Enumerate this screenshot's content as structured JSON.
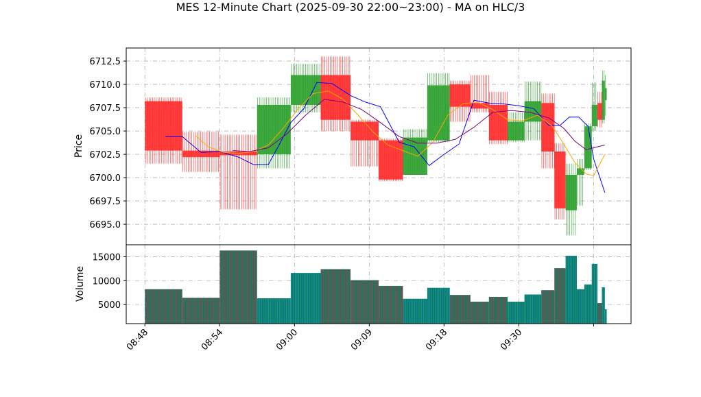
{
  "chart_data": {
    "type": "candlestick",
    "title": "MES 12-Minute Chart (2025-09-30 22:00~23:00) - MA on HLC/3",
    "price_panel": {
      "ylabel": "Price",
      "ylim": [
        6692.8,
        6713.9
      ],
      "yticks": [
        6695.0,
        6697.5,
        6700.0,
        6702.5,
        6705.0,
        6707.5,
        6710.0,
        6712.5
      ],
      "ytick_labels": [
        "6695.0",
        "6697.5",
        "6700.0",
        "6702.5",
        "6705.0",
        "6707.5",
        "6710.0",
        "6712.5"
      ],
      "grid": true,
      "candles": [
        {
          "x": 0.0,
          "w": 1.0,
          "open": 6708.2,
          "high": 6708.6,
          "low": 6701.5,
          "close": 6702.9
        },
        {
          "x": 1.0,
          "w": 1.0,
          "open": 6702.9,
          "high": 6704.9,
          "low": 6700.6,
          "close": 6702.2
        },
        {
          "x": 2.0,
          "w": 1.0,
          "open": 6702.8,
          "high": 6704.6,
          "low": 6696.6,
          "close": 6702.4
        },
        {
          "x": 3.0,
          "w": 0.9,
          "open": 6702.5,
          "high": 6708.6,
          "low": 6701.0,
          "close": 6707.8
        },
        {
          "x": 3.9,
          "w": 0.8,
          "open": 6707.8,
          "high": 6712.2,
          "low": 6707.0,
          "close": 6711.0
        },
        {
          "x": 4.7,
          "w": 0.8,
          "open": 6711.0,
          "high": 6713.0,
          "low": 6705.0,
          "close": 6706.2
        },
        {
          "x": 5.5,
          "w": 0.75,
          "open": 6706.0,
          "high": 6706.2,
          "low": 6701.2,
          "close": 6704.0
        },
        {
          "x": 6.25,
          "w": 0.65,
          "open": 6704.0,
          "high": 6704.2,
          "low": 6699.6,
          "close": 6699.8
        },
        {
          "x": 6.9,
          "w": 0.65,
          "open": 6700.3,
          "high": 6705.2,
          "low": 6700.3,
          "close": 6704.3
        },
        {
          "x": 7.55,
          "w": 0.6,
          "open": 6704.0,
          "high": 6711.2,
          "low": 6703.8,
          "close": 6709.9
        },
        {
          "x": 8.15,
          "w": 0.55,
          "open": 6710.0,
          "high": 6710.4,
          "low": 6706.0,
          "close": 6707.6
        },
        {
          "x": 8.7,
          "w": 0.5,
          "open": 6708.0,
          "high": 6711.0,
          "low": 6707.0,
          "close": 6707.4
        },
        {
          "x": 9.2,
          "w": 0.5,
          "open": 6707.8,
          "high": 6709.2,
          "low": 6703.6,
          "close": 6704.0
        },
        {
          "x": 9.7,
          "w": 0.45,
          "open": 6704.0,
          "high": 6707.0,
          "low": 6703.8,
          "close": 6706.0
        },
        {
          "x": 10.15,
          "w": 0.45,
          "open": 6706.0,
          "high": 6710.3,
          "low": 6704.0,
          "close": 6708.2
        },
        {
          "x": 10.6,
          "w": 0.35,
          "open": 6708.0,
          "high": 6709.0,
          "low": 6701.0,
          "close": 6702.8
        },
        {
          "x": 10.95,
          "w": 0.3,
          "open": 6702.8,
          "high": 6703.7,
          "low": 6695.5,
          "close": 6696.7
        },
        {
          "x": 11.25,
          "w": 0.3,
          "open": 6696.5,
          "high": 6701.5,
          "low": 6693.8,
          "close": 6700.3
        },
        {
          "x": 11.55,
          "w": 0.2,
          "open": 6700.3,
          "high": 6702.0,
          "low": 6697.0,
          "close": 6701.0
        },
        {
          "x": 11.75,
          "w": 0.2,
          "open": 6701.0,
          "high": 6705.8,
          "low": 6700.8,
          "close": 6705.5
        },
        {
          "x": 11.95,
          "w": 0.15,
          "open": 6705.5,
          "high": 6710.2,
          "low": 6705.0,
          "close": 6707.8
        },
        {
          "x": 12.1,
          "w": 0.12,
          "open": 6708.0,
          "high": 6709.2,
          "low": 6705.4,
          "close": 6706.2
        },
        {
          "x": 12.22,
          "w": 0.08,
          "open": 6706.2,
          "high": 6711.5,
          "low": 6705.8,
          "close": 6710.4
        },
        {
          "x": 12.3,
          "w": 0.05,
          "open": 6708.3,
          "high": 6711.0,
          "low": 6706.6,
          "close": 6709.6
        }
      ],
      "ma_lines": [
        {
          "color": "#0000ff",
          "x": [
            0.55,
            1.0,
            1.5,
            2.0,
            2.5,
            2.9,
            3.3,
            3.6,
            3.9,
            4.25,
            4.6,
            5.0,
            5.5,
            5.9,
            6.3,
            6.8,
            7.2,
            7.6,
            8.0,
            8.4,
            8.8,
            9.2,
            9.6,
            10.0,
            10.4,
            10.8,
            11.1,
            11.35,
            11.6,
            11.85,
            12.0,
            12.3
          ],
          "y": [
            6704.4,
            6704.4,
            6702.7,
            6702.8,
            6702.2,
            6701.4,
            6701.4,
            6703.6,
            6705.9,
            6707.4,
            6710.2,
            6710.1,
            6708.8,
            6708.1,
            6707.6,
            6703.8,
            6703.3,
            6701.3,
            6702.5,
            6703.6,
            6708.3,
            6708.0,
            6707.9,
            6707.7,
            6707.4,
            6705.6,
            6705.6,
            6706.5,
            6706.5,
            6705.5,
            6702.0,
            6698.4
          ]
        },
        {
          "color": "#ffa500",
          "x": [
            1.35,
            1.7,
            2.1,
            2.5,
            2.9,
            3.3,
            3.7,
            4.1,
            4.5,
            4.9,
            5.3,
            5.7,
            6.1,
            6.5,
            6.9,
            7.3,
            7.7,
            8.1,
            8.5,
            8.9,
            9.3,
            9.7,
            10.1,
            10.5,
            10.9,
            11.2,
            11.5,
            11.8,
            12.0,
            12.3
          ],
          "y": [
            6704.5,
            6703.3,
            6702.7,
            6702.6,
            6702.8,
            6703.5,
            6705.3,
            6707.4,
            6709.0,
            6709.3,
            6708.4,
            6706.7,
            6704.9,
            6703.5,
            6702.9,
            6702.3,
            6703.8,
            6706.7,
            6707.9,
            6708.1,
            6707.3,
            6706.2,
            6706.1,
            6706.7,
            6705.5,
            6703.6,
            6701.6,
            6700.4,
            6700.2,
            6702.5
          ]
        },
        {
          "color": "#800080",
          "x": [
            2.35,
            2.8,
            3.3,
            3.8,
            4.3,
            4.8,
            5.3,
            5.8,
            6.3,
            6.8,
            7.3,
            7.8,
            8.3,
            8.8,
            9.3,
            9.8,
            10.3,
            10.8,
            11.2,
            11.5,
            11.8,
            12.0,
            12.3
          ],
          "y": [
            6702.9,
            6702.8,
            6703.2,
            6704.7,
            6706.7,
            6708.4,
            6708.1,
            6707.3,
            6705.9,
            6704.4,
            6703.7,
            6703.7,
            6704.1,
            6705.4,
            6707.0,
            6707.2,
            6707.0,
            6706.4,
            6705.3,
            6703.9,
            6703.0,
            6703.2,
            6703.5
          ]
        }
      ]
    },
    "volume_panel": {
      "ylabel": "Volume",
      "ylim": [
        1000,
        17500
      ],
      "yticks": [
        5000,
        10000,
        15000
      ],
      "ytick_labels": [
        "5000",
        "10000",
        "15000"
      ],
      "grid": true,
      "values": [
        8200,
        6400,
        16300,
        6300,
        11600,
        12400,
        10100,
        8900,
        6200,
        8500,
        7000,
        5600,
        6600,
        5600,
        7100,
        8000,
        12600,
        15200,
        8200,
        9200,
        13500,
        5300,
        8600,
        4000
      ]
    },
    "x_axis": {
      "xlim": [
        -0.5,
        13.0
      ],
      "ticks": [
        0.0,
        2.0,
        4.0,
        6.0,
        8.0,
        10.0,
        12.0
      ],
      "tick_labels": [
        "08:48",
        "08:54",
        "09:00",
        "09:09",
        "09:18",
        "09:30",
        ""
      ]
    },
    "colors": {
      "up": "#2ca02c",
      "down": "#ff2a2a",
      "volume_fill": "#0a7f5a",
      "volume_stripe_up": "#1e90c8",
      "volume_stripe_down": "#c0305a",
      "grid": "#b0b0b0"
    }
  }
}
